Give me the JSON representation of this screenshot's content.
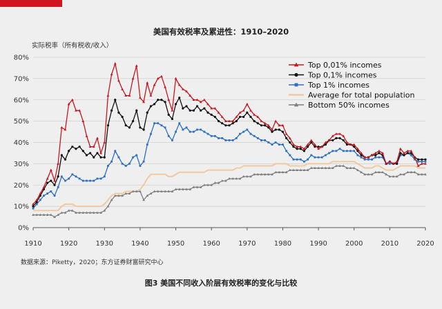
{
  "accent_color": "#d0161e",
  "chart_data": {
    "type": "line",
    "title": "美国有效税率及累进性：1910–2020",
    "ylabel": "实际税率（所有税收/收入）",
    "xlabel": "",
    "xlim": [
      1910,
      2020
    ],
    "ylim": [
      0,
      0.8
    ],
    "grid": true,
    "legend_position": "top-right",
    "x_ticks": [
      "1910",
      "1920",
      "1930",
      "1940",
      "1950",
      "1960",
      "1970",
      "1980",
      "1990",
      "2000",
      "2010",
      "2020"
    ],
    "y_ticks": [
      "0%",
      "10%",
      "20%",
      "30%",
      "40%",
      "50%",
      "60%",
      "70%",
      "80%"
    ],
    "x": [
      1910,
      1911,
      1912,
      1913,
      1914,
      1915,
      1916,
      1917,
      1918,
      1919,
      1920,
      1921,
      1922,
      1923,
      1924,
      1925,
      1926,
      1927,
      1928,
      1929,
      1930,
      1931,
      1932,
      1933,
      1934,
      1935,
      1936,
      1937,
      1938,
      1939,
      1940,
      1941,
      1942,
      1943,
      1944,
      1945,
      1946,
      1947,
      1948,
      1949,
      1950,
      1951,
      1952,
      1953,
      1954,
      1955,
      1956,
      1957,
      1958,
      1959,
      1960,
      1961,
      1962,
      1963,
      1964,
      1965,
      1966,
      1967,
      1968,
      1969,
      1970,
      1971,
      1972,
      1973,
      1974,
      1975,
      1976,
      1977,
      1978,
      1979,
      1980,
      1981,
      1982,
      1983,
      1984,
      1985,
      1986,
      1987,
      1988,
      1989,
      1990,
      1991,
      1992,
      1993,
      1994,
      1995,
      1996,
      1997,
      1998,
      1999,
      2000,
      2001,
      2002,
      2003,
      2004,
      2005,
      2006,
      2007,
      2008,
      2009,
      2010,
      2011,
      2012,
      2013,
      2014,
      2015,
      2016,
      2017,
      2018,
      2019,
      2020
    ],
    "series": [
      {
        "name": "Top 0,01% incomes",
        "color": "#c8161e",
        "marker": "triangle",
        "values": [
          0.11,
          0.13,
          0.16,
          0.19,
          0.23,
          0.27,
          0.22,
          0.3,
          0.47,
          0.46,
          0.58,
          0.6,
          0.55,
          0.55,
          0.5,
          0.43,
          0.38,
          0.38,
          0.42,
          0.35,
          0.4,
          0.62,
          0.72,
          0.77,
          0.69,
          0.65,
          0.62,
          0.62,
          0.7,
          0.76,
          0.61,
          0.59,
          0.68,
          0.62,
          0.67,
          0.7,
          0.71,
          0.66,
          0.6,
          0.55,
          0.7,
          0.67,
          0.65,
          0.64,
          0.62,
          0.6,
          0.6,
          0.59,
          0.6,
          0.58,
          0.56,
          0.56,
          0.54,
          0.52,
          0.5,
          0.5,
          0.5,
          0.52,
          0.54,
          0.55,
          0.58,
          0.55,
          0.53,
          0.52,
          0.5,
          0.49,
          0.48,
          0.46,
          0.5,
          0.48,
          0.48,
          0.44,
          0.42,
          0.39,
          0.38,
          0.38,
          0.37,
          0.39,
          0.41,
          0.39,
          0.37,
          0.38,
          0.4,
          0.41,
          0.43,
          0.44,
          0.44,
          0.43,
          0.4,
          0.39,
          0.39,
          0.37,
          0.35,
          0.33,
          0.33,
          0.34,
          0.35,
          0.36,
          0.35,
          0.3,
          0.31,
          0.3,
          0.31,
          0.37,
          0.35,
          0.36,
          0.36,
          0.33,
          0.29,
          0.3,
          0.3
        ]
      },
      {
        "name": "Top 0,1% incomes",
        "color": "#111111",
        "marker": "circle",
        "values": [
          0.1,
          0.12,
          0.15,
          0.18,
          0.21,
          0.22,
          0.2,
          0.24,
          0.34,
          0.32,
          0.36,
          0.38,
          0.37,
          0.38,
          0.36,
          0.34,
          0.35,
          0.33,
          0.35,
          0.33,
          0.33,
          0.48,
          0.55,
          0.6,
          0.54,
          0.52,
          0.48,
          0.47,
          0.5,
          0.55,
          0.47,
          0.46,
          0.54,
          0.57,
          0.58,
          0.6,
          0.6,
          0.59,
          0.53,
          0.51,
          0.58,
          0.61,
          0.56,
          0.57,
          0.55,
          0.55,
          0.57,
          0.55,
          0.56,
          0.54,
          0.53,
          0.52,
          0.5,
          0.49,
          0.48,
          0.48,
          0.49,
          0.5,
          0.52,
          0.52,
          0.54,
          0.52,
          0.5,
          0.49,
          0.48,
          0.48,
          0.47,
          0.45,
          0.46,
          0.46,
          0.45,
          0.42,
          0.4,
          0.38,
          0.37,
          0.37,
          0.36,
          0.38,
          0.4,
          0.38,
          0.38,
          0.38,
          0.39,
          0.41,
          0.41,
          0.42,
          0.42,
          0.41,
          0.39,
          0.39,
          0.38,
          0.36,
          0.34,
          0.33,
          0.33,
          0.34,
          0.34,
          0.35,
          0.34,
          0.3,
          0.31,
          0.3,
          0.3,
          0.35,
          0.34,
          0.35,
          0.35,
          0.33,
          0.32,
          0.32,
          0.32
        ]
      },
      {
        "name": "Top 1% incomes",
        "color": "#2e6fbf",
        "marker": "square",
        "values": [
          0.09,
          0.11,
          0.13,
          0.15,
          0.16,
          0.17,
          0.15,
          0.19,
          0.24,
          0.22,
          0.23,
          0.25,
          0.24,
          0.23,
          0.22,
          0.22,
          0.22,
          0.22,
          0.23,
          0.23,
          0.24,
          0.29,
          0.31,
          0.36,
          0.33,
          0.3,
          0.29,
          0.3,
          0.33,
          0.34,
          0.29,
          0.31,
          0.39,
          0.44,
          0.49,
          0.49,
          0.48,
          0.47,
          0.43,
          0.41,
          0.45,
          0.49,
          0.46,
          0.47,
          0.45,
          0.45,
          0.46,
          0.46,
          0.45,
          0.44,
          0.43,
          0.43,
          0.42,
          0.42,
          0.41,
          0.41,
          0.41,
          0.42,
          0.44,
          0.45,
          0.46,
          0.44,
          0.43,
          0.42,
          0.41,
          0.41,
          0.4,
          0.39,
          0.4,
          0.39,
          0.39,
          0.36,
          0.34,
          0.32,
          0.32,
          0.32,
          0.31,
          0.32,
          0.34,
          0.33,
          0.33,
          0.33,
          0.34,
          0.35,
          0.36,
          0.36,
          0.37,
          0.36,
          0.36,
          0.36,
          0.36,
          0.34,
          0.33,
          0.32,
          0.32,
          0.32,
          0.33,
          0.33,
          0.33,
          0.3,
          0.3,
          0.3,
          0.3,
          0.34,
          0.34,
          0.35,
          0.34,
          0.32,
          0.31,
          0.31,
          0.31
        ]
      },
      {
        "name": "Average for total population",
        "color": "#f0c9a0",
        "marker": "none",
        "values": [
          0.08,
          0.08,
          0.08,
          0.08,
          0.08,
          0.08,
          0.08,
          0.08,
          0.1,
          0.11,
          0.11,
          0.11,
          0.1,
          0.1,
          0.1,
          0.1,
          0.1,
          0.1,
          0.1,
          0.1,
          0.11,
          0.13,
          0.15,
          0.16,
          0.16,
          0.16,
          0.17,
          0.17,
          0.17,
          0.17,
          0.18,
          0.2,
          0.23,
          0.25,
          0.25,
          0.25,
          0.25,
          0.25,
          0.24,
          0.24,
          0.25,
          0.26,
          0.26,
          0.26,
          0.26,
          0.26,
          0.26,
          0.26,
          0.26,
          0.27,
          0.27,
          0.27,
          0.27,
          0.27,
          0.27,
          0.27,
          0.27,
          0.28,
          0.28,
          0.29,
          0.29,
          0.29,
          0.29,
          0.29,
          0.29,
          0.29,
          0.29,
          0.29,
          0.3,
          0.3,
          0.3,
          0.3,
          0.29,
          0.29,
          0.29,
          0.29,
          0.29,
          0.3,
          0.3,
          0.3,
          0.3,
          0.3,
          0.3,
          0.3,
          0.31,
          0.31,
          0.31,
          0.31,
          0.31,
          0.31,
          0.31,
          0.3,
          0.29,
          0.28,
          0.28,
          0.28,
          0.29,
          0.29,
          0.28,
          0.27,
          0.27,
          0.27,
          0.28,
          0.29,
          0.29,
          0.29,
          0.29,
          0.29,
          0.28,
          0.28,
          0.28
        ]
      },
      {
        "name": "Bottom 50% incomes",
        "color": "#7f7f7f",
        "marker": "triangle",
        "values": [
          0.06,
          0.06,
          0.06,
          0.06,
          0.06,
          0.06,
          0.05,
          0.06,
          0.07,
          0.07,
          0.08,
          0.08,
          0.07,
          0.07,
          0.07,
          0.07,
          0.07,
          0.07,
          0.07,
          0.07,
          0.08,
          0.1,
          0.13,
          0.15,
          0.15,
          0.15,
          0.16,
          0.16,
          0.17,
          0.17,
          0.17,
          0.13,
          0.15,
          0.16,
          0.17,
          0.17,
          0.17,
          0.17,
          0.17,
          0.17,
          0.18,
          0.18,
          0.18,
          0.18,
          0.18,
          0.19,
          0.19,
          0.19,
          0.2,
          0.2,
          0.2,
          0.21,
          0.21,
          0.22,
          0.22,
          0.23,
          0.23,
          0.23,
          0.23,
          0.24,
          0.24,
          0.24,
          0.25,
          0.25,
          0.25,
          0.25,
          0.25,
          0.25,
          0.26,
          0.26,
          0.26,
          0.26,
          0.27,
          0.27,
          0.27,
          0.27,
          0.27,
          0.27,
          0.28,
          0.28,
          0.28,
          0.28,
          0.28,
          0.28,
          0.28,
          0.29,
          0.29,
          0.29,
          0.28,
          0.28,
          0.28,
          0.27,
          0.26,
          0.25,
          0.25,
          0.25,
          0.26,
          0.26,
          0.26,
          0.25,
          0.24,
          0.24,
          0.24,
          0.25,
          0.25,
          0.26,
          0.26,
          0.26,
          0.25,
          0.25,
          0.25
        ]
      }
    ]
  },
  "source_note": "数据来源：Piketty，2020；东方证券财富研究中心",
  "caption": "图3 美国不同收入阶层有效税率的变化与比较"
}
